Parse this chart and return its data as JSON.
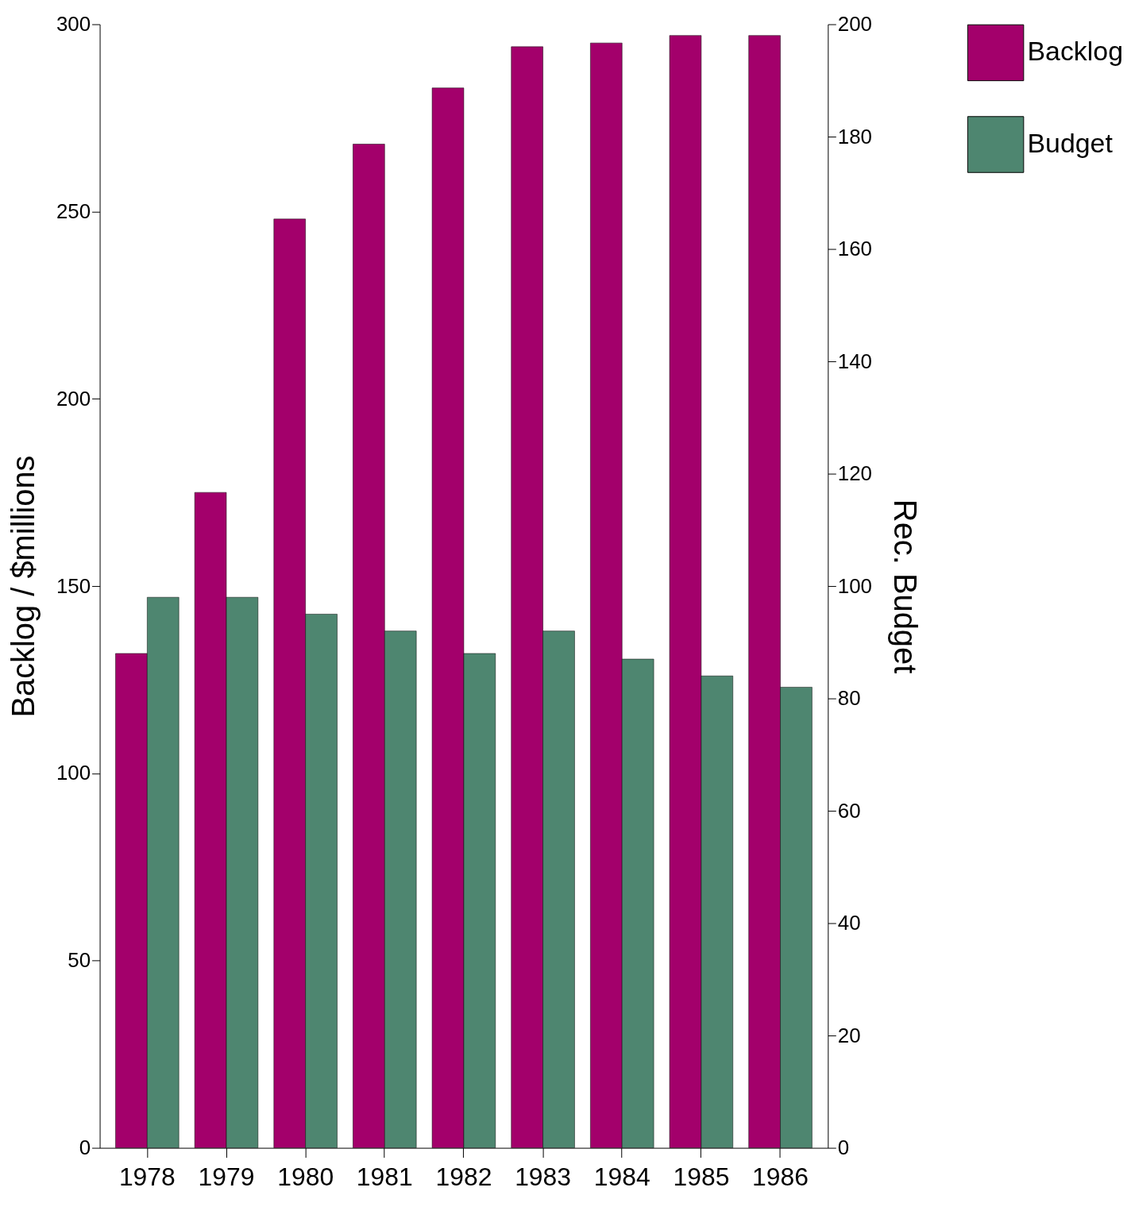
{
  "chart_data": {
    "type": "bar",
    "categories": [
      "1978",
      "1979",
      "1980",
      "1981",
      "1982",
      "1983",
      "1984",
      "1985",
      "1986"
    ],
    "series": [
      {
        "name": "Backlog",
        "color": "#a3006b",
        "values": [
          132,
          175,
          248,
          268,
          283,
          294,
          295,
          297,
          297
        ]
      },
      {
        "name": "Budget",
        "color": "#4e8670",
        "axis": "y2",
        "values": [
          98,
          98,
          95,
          92,
          88,
          92,
          87,
          84,
          82
        ]
      }
    ],
    "ylabel": "Backlog / $millions",
    "y2label": "Rec. Budget",
    "ylim": [
      0,
      300
    ],
    "yticks": [
      0,
      50,
      100,
      150,
      200,
      250,
      300
    ],
    "y2lim": [
      0,
      200
    ],
    "y2ticks": [
      0,
      20,
      40,
      60,
      80,
      100,
      120,
      140,
      160,
      180,
      200
    ],
    "grid": false,
    "legend": "top right"
  }
}
